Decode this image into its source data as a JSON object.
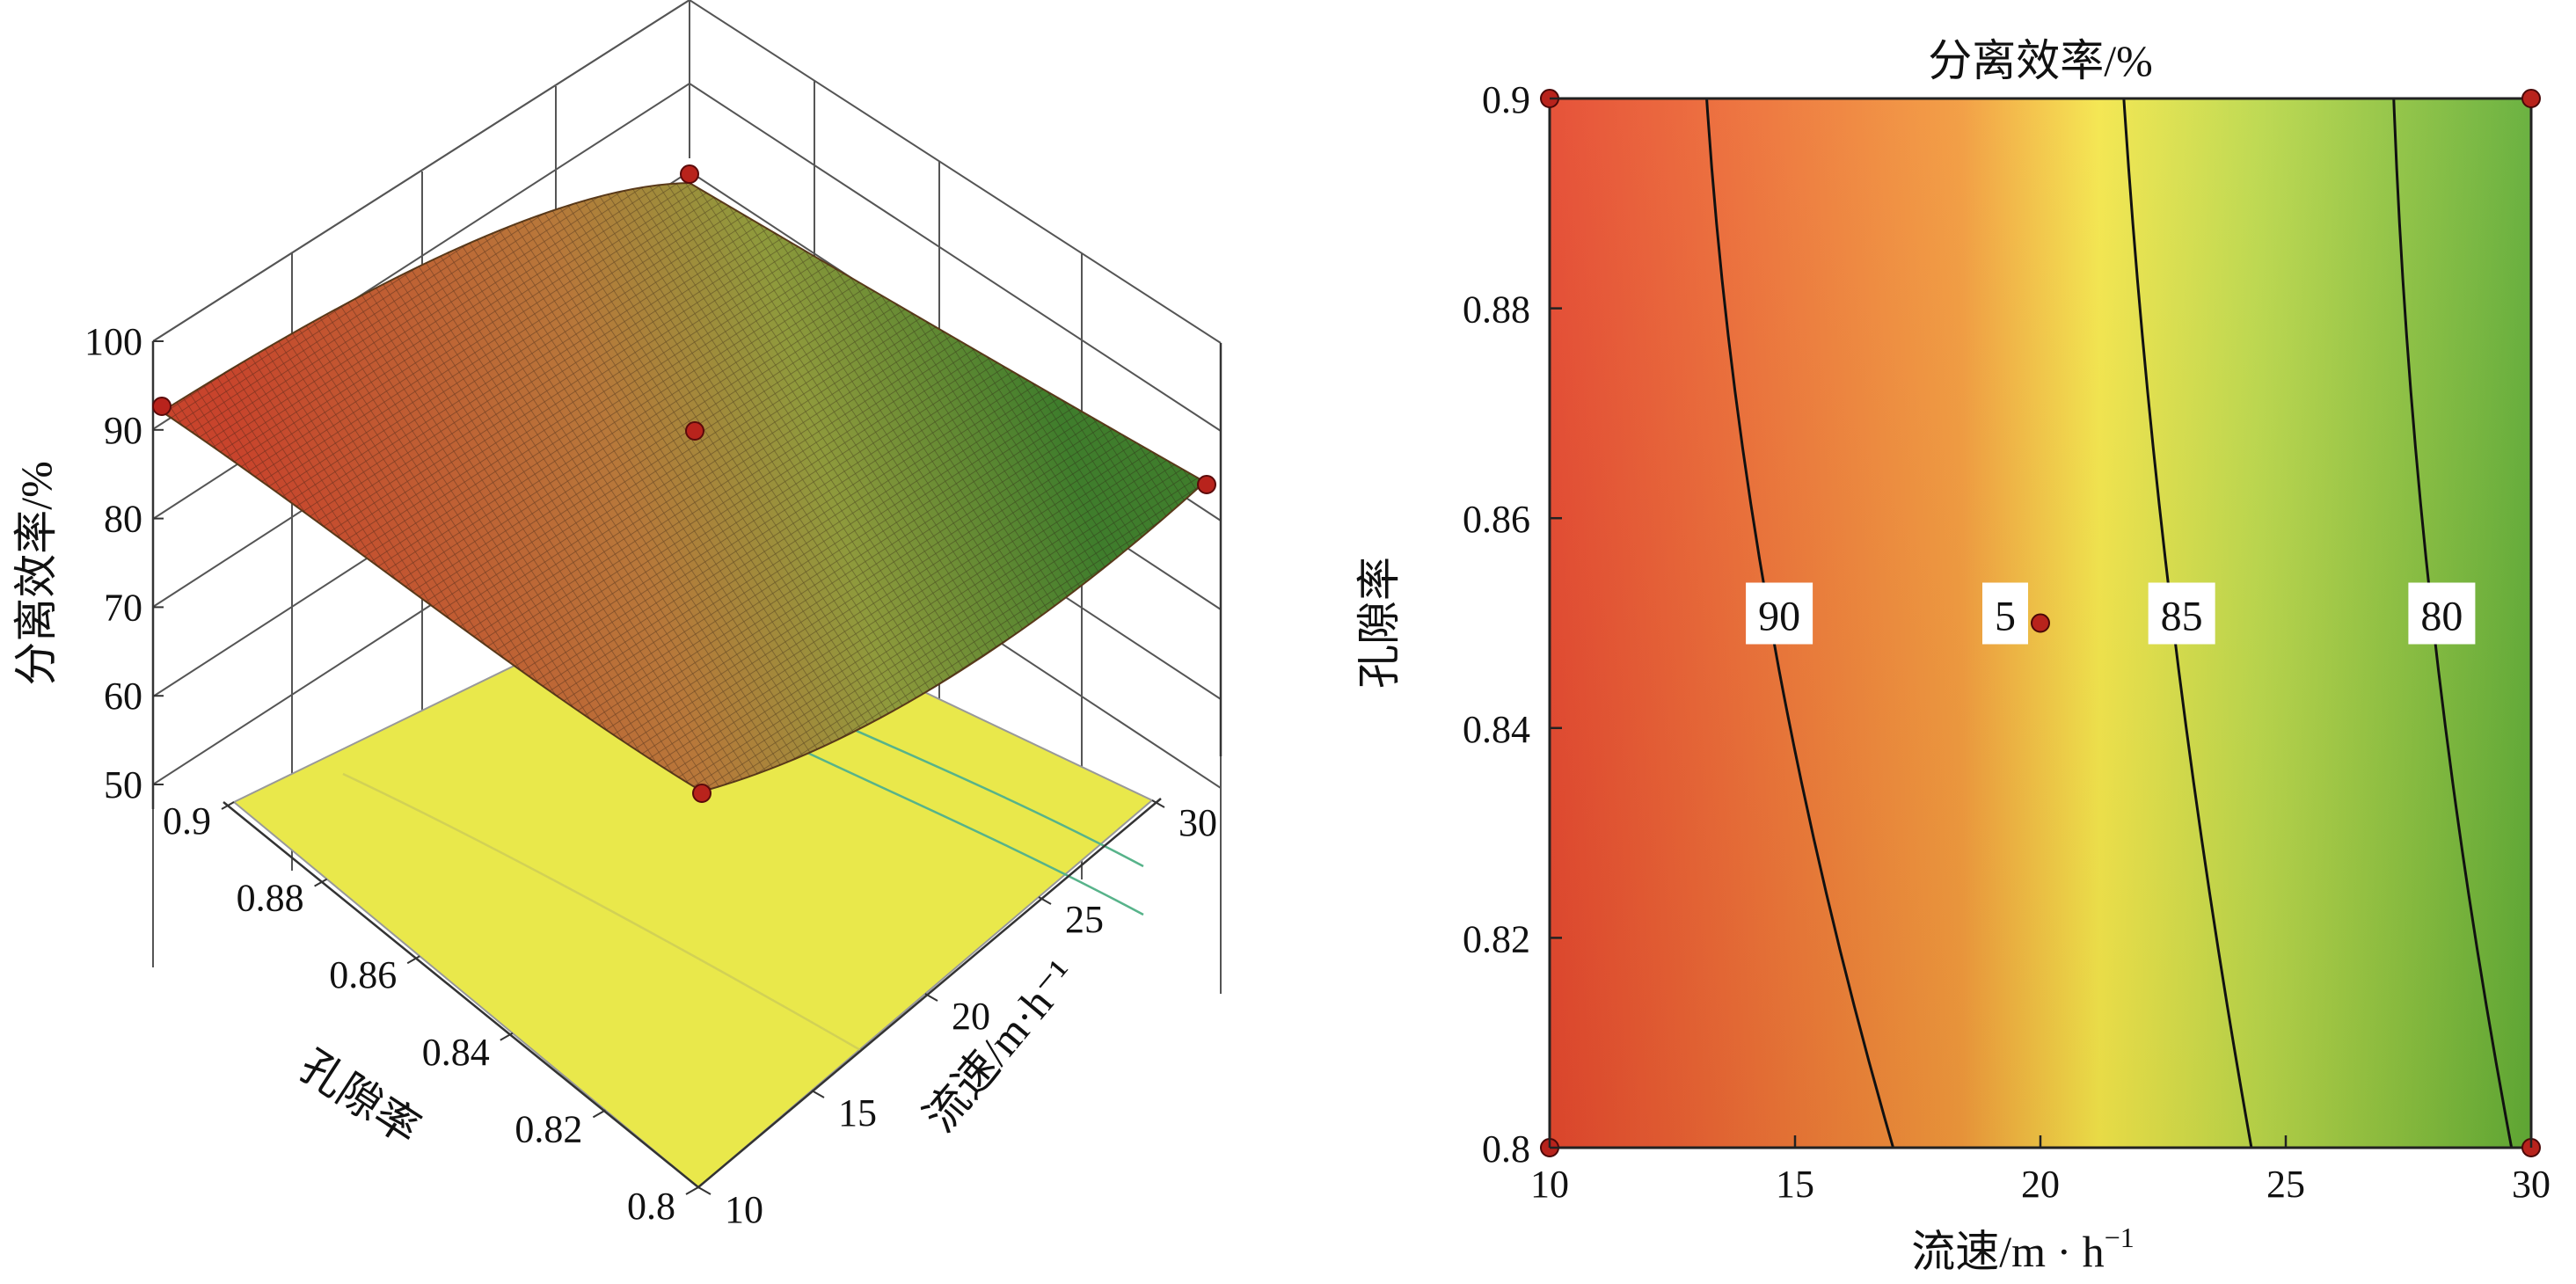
{
  "chart_data": [
    {
      "type": "surface",
      "zlabel": "分离效率/%",
      "xlabel": "流速/m·h⁻¹",
      "ylabel": "孔隙率",
      "x_ticks": [
        "10",
        "15",
        "20",
        "25",
        "30"
      ],
      "y_ticks": [
        "0.8",
        "0.82",
        "0.84",
        "0.86",
        "0.88",
        "0.9"
      ],
      "z_ticks": [
        "50",
        "60",
        "70",
        "80",
        "90",
        "100"
      ],
      "xlim": [
        10,
        30
      ],
      "ylim": [
        0.8,
        0.9
      ],
      "zlim": [
        45,
        100
      ],
      "design_points": [
        {
          "x": 10,
          "y": 0.8,
          "z": 92
        },
        {
          "x": 10,
          "y": 0.9,
          "z": 91
        },
        {
          "x": 30,
          "y": 0.8,
          "z": 78
        },
        {
          "x": 30,
          "y": 0.9,
          "z": 80
        },
        {
          "x": 20,
          "y": 0.85,
          "z": 86
        }
      ],
      "colors": {
        "low": "#2e7d2e",
        "mid": "#e8e84a",
        "high": "#d9432a",
        "floor": "#e8e84a"
      }
    },
    {
      "type": "contour",
      "title": "分离效率/%",
      "xlabel": "流速/m · h",
      "xlabel_sup": "−1",
      "ylabel": "孔隙率",
      "x_ticks": [
        "10",
        "15",
        "20",
        "25",
        "30"
      ],
      "y_ticks": [
        "0.8",
        "0.82",
        "0.84",
        "0.86",
        "0.88",
        "0.9"
      ],
      "xlim": [
        10,
        30
      ],
      "ylim": [
        0.8,
        0.9
      ],
      "contours": [
        {
          "level": 90,
          "label": "90",
          "points": [
            [
              13.2,
              0.9
            ],
            [
              14.5,
              0.85
            ],
            [
              17.0,
              0.8
            ]
          ]
        },
        {
          "level": 85,
          "label": "85",
          "points": [
            [
              21.7,
              0.9
            ],
            [
              22.7,
              0.85
            ],
            [
              24.3,
              0.8
            ]
          ]
        },
        {
          "level": 80,
          "label": "80",
          "points": [
            [
              27.2,
              0.9
            ],
            [
              28.0,
              0.85
            ],
            [
              29.6,
              0.8
            ]
          ]
        }
      ],
      "center_label": "5",
      "design_points": [
        [
          10,
          0.9
        ],
        [
          30,
          0.9
        ],
        [
          10,
          0.8
        ],
        [
          30,
          0.8
        ],
        [
          20,
          0.85
        ]
      ],
      "colors": {
        "high": "#e64a2e",
        "mid": "#f0e84a",
        "low": "#6fb33a"
      }
    }
  ]
}
